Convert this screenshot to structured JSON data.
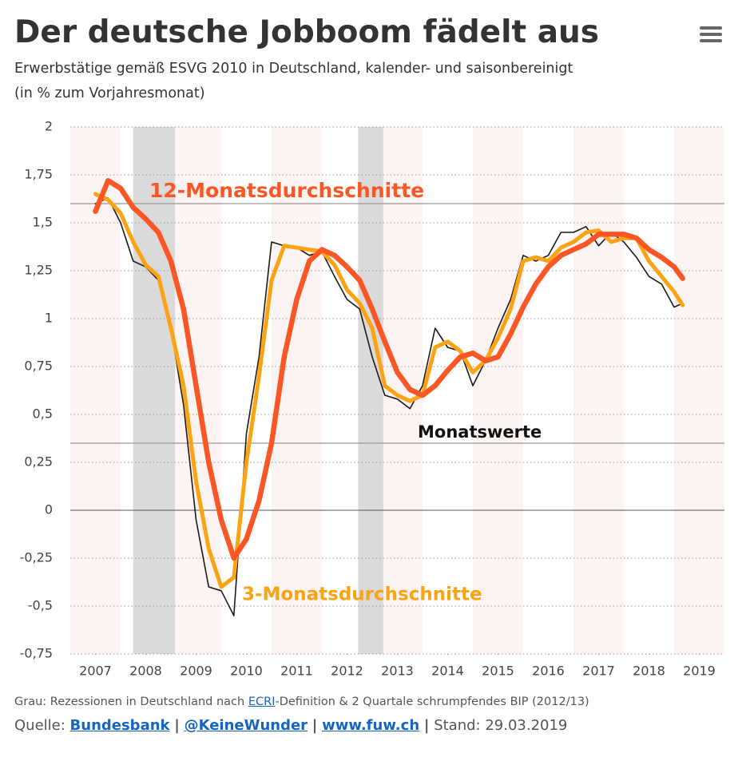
{
  "chart_data": {
    "type": "line",
    "title": "Der deutsche Jobboom fädelt aus",
    "subtitle": [
      "Erwerbstätige gemäß ESVG 2010 in Deutschland, kalender- und saisonbereinigt",
      "(in % zum Vorjahresmonat)"
    ],
    "x": [
      2007.5,
      2007.75,
      2008,
      2008.25,
      2008.5,
      2008.75,
      2009,
      2009.25,
      2009.5,
      2009.75,
      2010,
      2010.25,
      2010.5,
      2010.75,
      2011,
      2011.25,
      2011.5,
      2011.75,
      2012,
      2012.25,
      2012.5,
      2012.75,
      2013,
      2013.25,
      2013.5,
      2013.75,
      2014,
      2014.25,
      2014.5,
      2014.75,
      2015,
      2015.25,
      2015.5,
      2015.75,
      2016,
      2016.25,
      2016.5,
      2016.75,
      2017,
      2017.25,
      2017.5,
      2017.75,
      2018,
      2018.25,
      2018.5,
      2018.75,
      2019,
      2019.17
    ],
    "series": [
      {
        "name": "Monatswerte",
        "color": "#1a1a1a",
        "values": [
          1.6,
          1.63,
          1.5,
          1.3,
          1.27,
          1.2,
          0.95,
          0.55,
          -0.05,
          -0.4,
          -0.42,
          -0.55,
          0.4,
          0.8,
          1.4,
          1.38,
          1.37,
          1.33,
          1.35,
          1.22,
          1.1,
          1.05,
          0.8,
          0.6,
          0.58,
          0.53,
          0.65,
          0.95,
          0.85,
          0.83,
          0.65,
          0.78,
          0.95,
          1.1,
          1.33,
          1.3,
          1.33,
          1.45,
          1.45,
          1.48,
          1.38,
          1.45,
          1.4,
          1.32,
          1.22,
          1.18,
          1.06,
          1.08
        ]
      },
      {
        "name": "3-Monatsdurchschnitte",
        "color": "#fba313",
        "values": [
          1.65,
          1.62,
          1.55,
          1.4,
          1.28,
          1.22,
          0.95,
          0.65,
          0.15,
          -0.2,
          -0.4,
          -0.35,
          0.25,
          0.7,
          1.2,
          1.38,
          1.37,
          1.36,
          1.35,
          1.28,
          1.15,
          1.08,
          0.95,
          0.65,
          0.6,
          0.57,
          0.6,
          0.85,
          0.88,
          0.83,
          0.72,
          0.78,
          0.9,
          1.05,
          1.3,
          1.32,
          1.3,
          1.37,
          1.4,
          1.45,
          1.46,
          1.4,
          1.42,
          1.42,
          1.3,
          1.22,
          1.14,
          1.07
        ]
      },
      {
        "name": "12-Monatsdurchschnitte",
        "color": "#fb5726",
        "values": [
          1.56,
          1.72,
          1.68,
          1.58,
          1.52,
          1.45,
          1.3,
          1.05,
          0.65,
          0.25,
          -0.05,
          -0.25,
          -0.15,
          0.05,
          0.35,
          0.8,
          1.1,
          1.3,
          1.36,
          1.33,
          1.27,
          1.2,
          1.05,
          0.88,
          0.72,
          0.63,
          0.6,
          0.65,
          0.73,
          0.8,
          0.82,
          0.78,
          0.8,
          0.92,
          1.06,
          1.18,
          1.27,
          1.33,
          1.36,
          1.39,
          1.44,
          1.44,
          1.44,
          1.42,
          1.36,
          1.32,
          1.27,
          1.21
        ]
      }
    ],
    "recessions": [
      [
        2008.25,
        2009.08
      ],
      [
        2012.72,
        2013.22
      ]
    ],
    "xlim": [
      2007,
      2020
    ],
    "xticks": [
      {
        "value": 2007.5,
        "label": "2007"
      },
      {
        "value": 2008.5,
        "label": "2008"
      },
      {
        "value": 2009.5,
        "label": "2009"
      },
      {
        "value": 2010.5,
        "label": "2010"
      },
      {
        "value": 2011.5,
        "label": "2011"
      },
      {
        "value": 2012.5,
        "label": "2012"
      },
      {
        "value": 2013.5,
        "label": "2013"
      },
      {
        "value": 2014.5,
        "label": "2014"
      },
      {
        "value": 2015.5,
        "label": "2015"
      },
      {
        "value": 2016.5,
        "label": "2016"
      },
      {
        "value": 2017.5,
        "label": "2017"
      },
      {
        "value": 2018.5,
        "label": "2018"
      },
      {
        "value": 2019.5,
        "label": "2019"
      }
    ],
    "ylim": [
      -0.75,
      2
    ],
    "yticks": [
      {
        "value": -0.75,
        "label": "-0,75"
      },
      {
        "value": -0.5,
        "label": "-0,5"
      },
      {
        "value": -0.25,
        "label": "-0,25"
      },
      0,
      {
        "value": 0.25,
        "label": "0,25"
      },
      {
        "value": 0.5,
        "label": "0,5"
      },
      {
        "value": 0.75,
        "label": "0,75"
      },
      1,
      {
        "value": 1.25,
        "label": "1,25"
      },
      {
        "value": 1.5,
        "label": "1,5"
      },
      {
        "value": 1.75,
        "label": "1,75"
      },
      2
    ],
    "grid": true,
    "note": {
      "before": "Grau: Rezessionen in Deutschland nach ",
      "link": "ECRI",
      "after": "-Definition & 2 Quartale schrumpfendes BIP (2012/13)"
    },
    "source": {
      "label": "Quelle:",
      "links": [
        "Bundesbank",
        "@KeineWunder",
        "www.fuw.ch"
      ],
      "separator": "|",
      "date": "Stand: 29.03.2019"
    }
  }
}
